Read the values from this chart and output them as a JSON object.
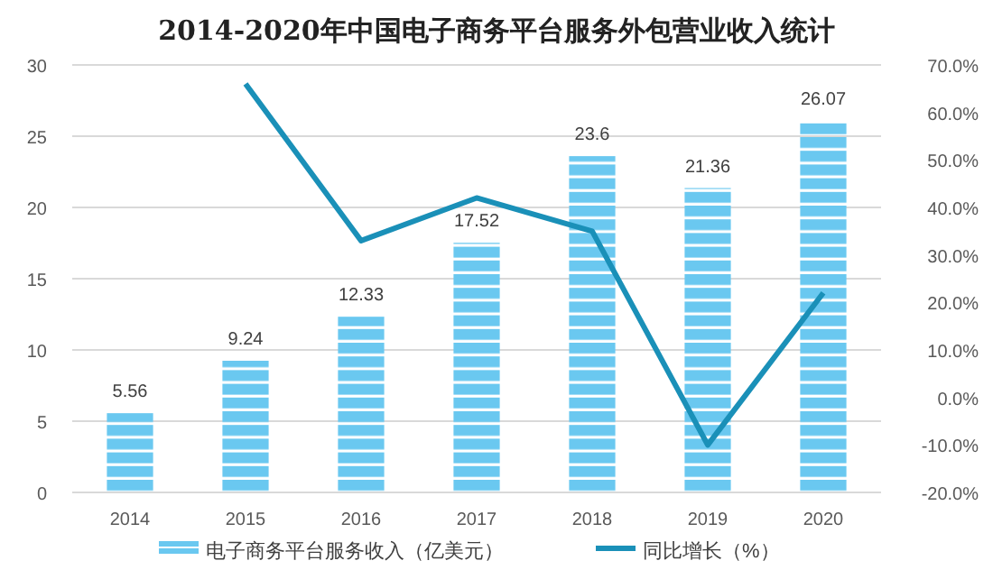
{
  "chart_data": {
    "type": "bar",
    "title": "2014-2020年中国电子商务平台服务外包营业收入统计",
    "categories": [
      "2014",
      "2015",
      "2016",
      "2017",
      "2018",
      "2019",
      "2020"
    ],
    "series": [
      {
        "name": "电子商务平台服务收入（亿美元）",
        "color": "#6ac8f0",
        "values": [
          5.56,
          9.24,
          12.33,
          17.52,
          23.6,
          21.36,
          26.07
        ],
        "data_labels": true
      },
      {
        "name": "同比增长（%）",
        "type": "line",
        "axis": "y2",
        "color": "#1a90b8",
        "values": [
          null,
          66,
          33,
          42,
          35,
          -10,
          22
        ]
      }
    ],
    "ylim": [
      0,
      30
    ],
    "yticks": [
      0,
      5,
      10,
      15,
      20,
      25,
      30
    ],
    "y2lim": [
      -20,
      70
    ],
    "y2ticks": [
      {
        "value": -20,
        "label": "-20.0%"
      },
      {
        "value": -10,
        "label": "-10.0%"
      },
      {
        "value": 0,
        "label": "0.0%"
      },
      {
        "value": 10,
        "label": "10.0%"
      },
      {
        "value": 20,
        "label": "20.0%"
      },
      {
        "value": 30,
        "label": "30.0%"
      },
      {
        "value": 40,
        "label": "40.0%"
      },
      {
        "value": 50,
        "label": "50.0%"
      },
      {
        "value": 60,
        "label": "60.0%"
      },
      {
        "value": 70,
        "label": "70.0%"
      }
    ],
    "grid": "y",
    "legend": "bottom",
    "marker": "none",
    "line_style": "solid"
  }
}
